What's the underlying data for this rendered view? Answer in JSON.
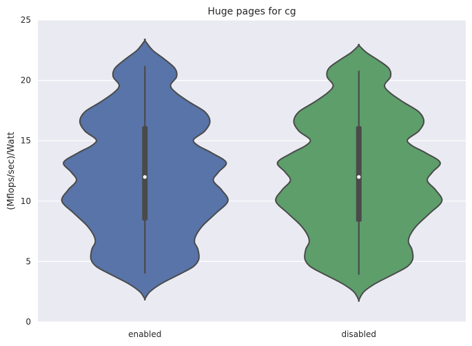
{
  "chart_data": {
    "type": "violin",
    "title": "Huge pages for cg",
    "xlabel": "",
    "ylabel": "(Mflops/sec)/Watt",
    "ylim": [
      0,
      25
    ],
    "yticks": [
      "0",
      "5",
      "10",
      "15",
      "20",
      "25"
    ],
    "grid": true,
    "background": "#eaeaf2",
    "categories": [
      "enabled",
      "disabled"
    ],
    "colors": [
      "#5874a8",
      "#5d9e6b"
    ],
    "outline_color": "#4a4a4a",
    "series": [
      {
        "name": "enabled",
        "min": 4.0,
        "q1": 8.4,
        "median": 12.0,
        "q3": 16.2,
        "max": 21.2,
        "density": [
          [
            1.9,
            0.0
          ],
          [
            2.5,
            0.06
          ],
          [
            3.2,
            0.2
          ],
          [
            4.0,
            0.42
          ],
          [
            4.6,
            0.57
          ],
          [
            5.2,
            0.63
          ],
          [
            6.0,
            0.62
          ],
          [
            6.6,
            0.58
          ],
          [
            7.2,
            0.6
          ],
          [
            8.0,
            0.68
          ],
          [
            9.0,
            0.83
          ],
          [
            10.0,
            0.97
          ],
          [
            10.9,
            0.9
          ],
          [
            11.7,
            0.8
          ],
          [
            12.4,
            0.86
          ],
          [
            13.2,
            0.95
          ],
          [
            14.0,
            0.78
          ],
          [
            14.6,
            0.62
          ],
          [
            15.1,
            0.57
          ],
          [
            15.8,
            0.7
          ],
          [
            16.6,
            0.76
          ],
          [
            17.4,
            0.7
          ],
          [
            18.2,
            0.52
          ],
          [
            19.0,
            0.36
          ],
          [
            19.6,
            0.3
          ],
          [
            20.3,
            0.37
          ],
          [
            21.0,
            0.35
          ],
          [
            21.8,
            0.22
          ],
          [
            22.5,
            0.09
          ],
          [
            23.3,
            0.0
          ]
        ]
      },
      {
        "name": "disabled",
        "min": 3.9,
        "q1": 8.3,
        "median": 12.0,
        "q3": 16.2,
        "max": 20.8,
        "density": [
          [
            1.8,
            0.0
          ],
          [
            2.5,
            0.06
          ],
          [
            3.2,
            0.2
          ],
          [
            4.0,
            0.42
          ],
          [
            4.6,
            0.57
          ],
          [
            5.2,
            0.63
          ],
          [
            6.0,
            0.62
          ],
          [
            6.6,
            0.58
          ],
          [
            7.2,
            0.6
          ],
          [
            8.0,
            0.68
          ],
          [
            9.0,
            0.83
          ],
          [
            10.0,
            0.97
          ],
          [
            10.9,
            0.9
          ],
          [
            11.7,
            0.8
          ],
          [
            12.4,
            0.86
          ],
          [
            13.2,
            0.95
          ],
          [
            14.0,
            0.78
          ],
          [
            14.6,
            0.62
          ],
          [
            15.1,
            0.57
          ],
          [
            15.8,
            0.7
          ],
          [
            16.6,
            0.76
          ],
          [
            17.4,
            0.7
          ],
          [
            18.2,
            0.52
          ],
          [
            19.0,
            0.36
          ],
          [
            19.6,
            0.3
          ],
          [
            20.3,
            0.37
          ],
          [
            21.0,
            0.35
          ],
          [
            21.7,
            0.22
          ],
          [
            22.3,
            0.09
          ],
          [
            22.9,
            0.0
          ]
        ]
      }
    ]
  }
}
